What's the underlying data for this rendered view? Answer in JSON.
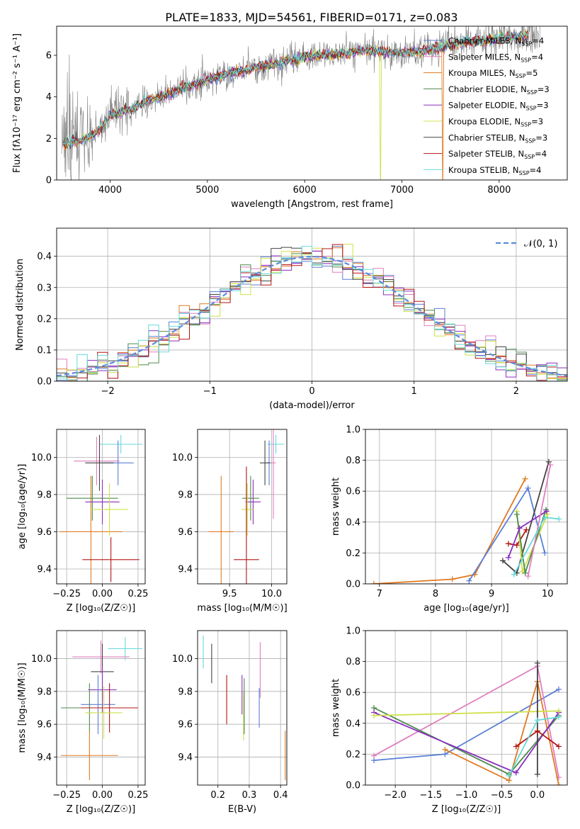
{
  "figure": {
    "title": "PLATE=1833, MJD=54561, FIBERID=0171, z=0.083"
  },
  "colors": {
    "Chabrier MILES": "#5b7fd6",
    "Salpeter MILES": "#e07fbf",
    "Kroupa MILES": "#e07a22",
    "Chabrier ELODIE": "#4f8a4f",
    "Salpeter ELODIE": "#8a2fbf",
    "Kroupa ELODIE": "#cfe04a",
    "Chabrier STELIB": "#444444",
    "Salpeter STELIB": "#b31515",
    "Kroupa STELIB": "#66d9d9",
    "data": "#808080",
    "normal": "#5b8cdb",
    "grid": "#b0b0b0"
  },
  "chart_data": [
    {
      "id": "spectrum",
      "type": "line",
      "xlabel": "wavelength [Angstrom, rest frame]",
      "ylabel": "Flux [fλ10⁻¹⁷ erg cm⁻² s⁻¹ A⁻¹]",
      "xlim": [
        3450,
        8700
      ],
      "ylim": [
        0,
        7.4
      ],
      "xticks": [
        4000,
        5000,
        6000,
        7000,
        8000
      ],
      "yticks": [
        0,
        2,
        4,
        6
      ],
      "grid": false,
      "legend_position": "right",
      "series": [
        {
          "name": "Chabrier MILES, N",
          "sub": "SSP",
          "suffix": "=4"
        },
        {
          "name": "Salpeter MILES, N",
          "sub": "SSP",
          "suffix": "=4"
        },
        {
          "name": "Kroupa MILES, N",
          "sub": "SSP",
          "suffix": "=5"
        },
        {
          "name": "Chabrier ELODIE, N",
          "sub": "SSP",
          "suffix": "=3"
        },
        {
          "name": "Salpeter ELODIE, N",
          "sub": "SSP",
          "suffix": "=3"
        },
        {
          "name": "Kroupa ELODIE, N",
          "sub": "SSP",
          "suffix": "=3"
        },
        {
          "name": "Chabrier STELIB, N",
          "sub": "SSP",
          "suffix": "=3"
        },
        {
          "name": "Salpeter STELIB, N",
          "sub": "SSP",
          "suffix": "=4"
        },
        {
          "name": "Kroupa STELIB, N",
          "sub": "SSP",
          "suffix": "=4"
        }
      ],
      "continuum": {
        "x": [
          3500,
          3600,
          3700,
          3800,
          3900,
          4000,
          4200,
          4400,
          4600,
          4800,
          5000,
          5200,
          5400,
          5600,
          5800,
          6000,
          6200,
          6400,
          6600,
          6800,
          7000,
          7200,
          7400,
          7600,
          7800,
          8000,
          8200,
          8400
        ],
        "y": [
          1.6,
          1.8,
          1.9,
          2.1,
          2.5,
          3.1,
          3.4,
          3.8,
          4.1,
          4.5,
          4.8,
          5.1,
          5.3,
          5.5,
          5.7,
          5.9,
          6.0,
          6.1,
          6.2,
          6.2,
          6.1,
          6.2,
          6.4,
          6.6,
          6.7,
          6.8,
          6.9,
          6.9
        ]
      }
    },
    {
      "id": "residuals",
      "type": "line",
      "xlabel": "(data-model)/error",
      "ylabel": "Normed distribution",
      "xlim": [
        -2.5,
        2.5
      ],
      "ylim": [
        0,
        0.49
      ],
      "xticks": [
        -2,
        -1,
        0,
        1,
        2
      ],
      "yticks": [
        0.0,
        0.1,
        0.2,
        0.3,
        0.4
      ],
      "grid": true,
      "legend_position": "top-right",
      "legend": "𝒩(0, 1)",
      "bins": 50
    },
    {
      "id": "age_vs_Z",
      "type": "scatter",
      "xlabel": "Z [log₁₀(Z/Z☉)]",
      "ylabel": "age  [log₁₀(age/yr)]",
      "xlim": [
        -0.32,
        0.3
      ],
      "ylim": [
        9.32,
        10.15
      ],
      "xticks": [
        -0.25,
        0.0,
        0.25
      ],
      "yticks": [
        9.4,
        9.6,
        9.8,
        10.0
      ],
      "grid": true,
      "points": [
        {
          "model": "Salpeter MILES",
          "x": -0.04,
          "y": 9.98,
          "xerr": 0.16,
          "yerr": 0.13
        },
        {
          "model": "Kroupa STELIB",
          "x": 0.13,
          "y": 10.07,
          "xerr": 0.15,
          "yerr": 0.05
        },
        {
          "model": "Chabrier MILES",
          "x": 0.11,
          "y": 9.97,
          "xerr": 0.11,
          "yerr": 0.12
        },
        {
          "model": "Chabrier STELIB",
          "x": -0.02,
          "y": 9.97,
          "xerr": 0.1,
          "yerr": 0.15
        },
        {
          "model": "Kroupa MILES",
          "x": -0.08,
          "y": 9.6,
          "xerr": 0.22,
          "yerr": 0.3
        },
        {
          "model": "Chabrier ELODIE",
          "x": -0.07,
          "y": 9.78,
          "xerr": 0.18,
          "yerr": 0.12
        },
        {
          "model": "Salpeter ELODIE",
          "x": 0.0,
          "y": 9.76,
          "xerr": 0.12,
          "yerr": 0.12
        },
        {
          "model": "Kroupa ELODIE",
          "x": 0.05,
          "y": 9.72,
          "xerr": 0.13,
          "yerr": 0.14
        },
        {
          "model": "Salpeter STELIB",
          "x": 0.06,
          "y": 9.45,
          "xerr": 0.2,
          "yerr": 0.12
        }
      ]
    },
    {
      "id": "age_vs_mass",
      "type": "scatter",
      "xlabel": "mass [log₁₀(M/M☉)]",
      "ylabel": "",
      "xlim": [
        9.12,
        10.18
      ],
      "ylim": [
        9.32,
        10.15
      ],
      "xticks": [
        9.5,
        10.0
      ],
      "yticks": [
        9.4,
        9.6,
        9.8,
        10.0
      ],
      "grid": true,
      "points": [
        {
          "model": "Kroupa STELIB",
          "x": 10.05,
          "y": 10.07,
          "xerr": 0.1,
          "yerr": 0.05
        },
        {
          "model": "Chabrier MILES",
          "x": 9.97,
          "y": 9.97,
          "xerr": 0.03,
          "yerr": 0.12
        },
        {
          "model": "Chabrier STELIB",
          "x": 9.92,
          "y": 9.97,
          "xerr": 0.06,
          "yerr": 0.12
        },
        {
          "model": "Salpeter MILES",
          "x": 10.02,
          "y": 9.97,
          "xerr": 0.03,
          "yerr": 0.3
        },
        {
          "model": "Kroupa MILES",
          "x": 9.4,
          "y": 9.6,
          "xerr": 0.15,
          "yerr": 0.3
        },
        {
          "model": "Chabrier ELODIE",
          "x": 9.75,
          "y": 9.78,
          "xerr": 0.1,
          "yerr": 0.12
        },
        {
          "model": "Salpeter ELODIE",
          "x": 9.78,
          "y": 9.76,
          "xerr": 0.09,
          "yerr": 0.12
        },
        {
          "model": "Kroupa ELODIE",
          "x": 9.71,
          "y": 9.72,
          "xerr": 0.07,
          "yerr": 0.14
        },
        {
          "model": "Salpeter STELIB",
          "x": 9.7,
          "y": 9.45,
          "xerr": 0.15,
          "yerr": 0.5
        }
      ]
    },
    {
      "id": "mass_weight_vs_age",
      "type": "line",
      "xlabel": "age  [log₁₀(age/yr)]",
      "ylabel": "mass weight",
      "xlim": [
        6.75,
        10.35
      ],
      "ylim": [
        0,
        1.0
      ],
      "xticks": [
        7,
        8,
        9,
        10
      ],
      "yticks": [
        0.0,
        0.2,
        0.4,
        0.6,
        0.8,
        1.0
      ],
      "grid": true,
      "series": [
        {
          "model": "Kroupa MILES",
          "x": [
            6.9,
            8.3,
            8.7,
            9.6
          ],
          "y": [
            0.0,
            0.03,
            0.06,
            0.68
          ]
        },
        {
          "model": "Chabrier MILES",
          "x": [
            8.6,
            9.65,
            9.95
          ],
          "y": [
            0.02,
            0.62,
            0.2
          ]
        },
        {
          "model": "Salpeter STELIB",
          "x": [
            9.3,
            9.45,
            9.62
          ],
          "y": [
            0.26,
            0.25,
            0.35
          ]
        },
        {
          "model": "Chabrier STELIB",
          "x": [
            9.2,
            9.45,
            10.02
          ],
          "y": [
            0.15,
            0.07,
            0.79
          ]
        },
        {
          "model": "Kroupa ELODIE",
          "x": [
            9.45,
            9.55,
            10.0
          ],
          "y": [
            0.47,
            0.08,
            0.45
          ]
        },
        {
          "model": "Chabrier ELODIE",
          "x": [
            9.45,
            9.6,
            9.97
          ],
          "y": [
            0.45,
            0.07,
            0.48
          ]
        },
        {
          "model": "Salpeter ELODIE",
          "x": [
            9.3,
            9.5,
            9.98
          ],
          "y": [
            0.17,
            0.36,
            0.47
          ]
        },
        {
          "model": "Salpeter MILES",
          "x": [
            9.65,
            10.05
          ],
          "y": [
            0.05,
            0.77
          ]
        },
        {
          "model": "Kroupa STELIB",
          "x": [
            9.4,
            9.95,
            10.2
          ],
          "y": [
            0.06,
            0.43,
            0.42
          ]
        }
      ]
    },
    {
      "id": "mass_vs_Z",
      "type": "scatter",
      "xlabel": "Z [log₁₀(Z/Z☉)]",
      "ylabel": "mass [log₁₀(M/M☉)]",
      "xlim": [
        -0.32,
        0.3
      ],
      "ylim": [
        9.23,
        10.17
      ],
      "xticks": [
        -0.25,
        0.0,
        0.25
      ],
      "yticks": [
        9.4,
        9.6,
        9.8,
        10.0
      ],
      "grid": true,
      "points": [
        {
          "model": "Kroupa STELIB",
          "x": 0.16,
          "y": 10.06,
          "xerr": 0.12,
          "yerr": 0.07
        },
        {
          "model": "Salpeter MILES",
          "x": -0.01,
          "y": 10.01,
          "xerr": 0.2,
          "yerr": 0.1
        },
        {
          "model": "Chabrier STELIB",
          "x": 0.0,
          "y": 9.92,
          "xerr": 0.08,
          "yerr": 0.17
        },
        {
          "model": "Salpeter ELODIE",
          "x": 0.0,
          "y": 9.81,
          "xerr": 0.1,
          "yerr": 0.14
        },
        {
          "model": "Chabrier MILES",
          "x": -0.03,
          "y": 9.72,
          "xerr": 0.12,
          "yerr": 0.18
        },
        {
          "model": "Chabrier ELODIE",
          "x": -0.09,
          "y": 9.7,
          "xerr": 0.2,
          "yerr": 0.15
        },
        {
          "model": "Salpeter STELIB",
          "x": 0.05,
          "y": 9.7,
          "xerr": 0.2,
          "yerr": 0.15
        },
        {
          "model": "Kroupa ELODIE",
          "x": 0.01,
          "y": 9.67,
          "xerr": 0.13,
          "yerr": 0.16
        },
        {
          "model": "Kroupa MILES",
          "x": -0.09,
          "y": 9.41,
          "xerr": 0.2,
          "yerr": 0.15
        }
      ]
    },
    {
      "id": "mass_vs_ebv",
      "type": "scatter",
      "xlabel": "E(B-V)",
      "ylabel": "",
      "xlim": [
        0.135,
        0.42
      ],
      "ylim": [
        9.23,
        10.17
      ],
      "xticks": [
        0.2,
        0.3,
        0.4
      ],
      "yticks": [
        9.4,
        9.6,
        9.8,
        10.0
      ],
      "grid": true,
      "points": [
        {
          "model": "Kroupa STELIB",
          "x": 0.153,
          "y": 10.04,
          "yerr": 0.1
        },
        {
          "model": "Chabrier STELIB",
          "x": 0.18,
          "y": 9.97,
          "yerr": 0.12
        },
        {
          "model": "Salpeter STELIB",
          "x": 0.228,
          "y": 9.75,
          "yerr": 0.15
        },
        {
          "model": "Salpeter ELODIE",
          "x": 0.277,
          "y": 9.78,
          "yerr": 0.12
        },
        {
          "model": "Kroupa ELODIE",
          "x": 0.282,
          "y": 9.65,
          "yerr": 0.15
        },
        {
          "model": "Chabrier ELODIE",
          "x": 0.284,
          "y": 9.71,
          "yerr": 0.17
        },
        {
          "model": "Salpeter MILES",
          "x": 0.335,
          "y": 9.93,
          "yerr": 0.17
        },
        {
          "model": "Chabrier MILES",
          "x": 0.332,
          "y": 9.7,
          "yerr": 0.12
        },
        {
          "model": "Kroupa MILES",
          "x": 0.415,
          "y": 9.41,
          "yerr": 0.15
        }
      ]
    },
    {
      "id": "mass_weight_vs_Z",
      "type": "line",
      "xlabel": "Z [log₁₀(Z/Z☉)]",
      "ylabel": "mass weight",
      "xlim": [
        -2.42,
        0.42
      ],
      "ylim": [
        0,
        1.0
      ],
      "xticks": [
        -2.0,
        -1.5,
        -1.0,
        -0.5,
        0.0
      ],
      "yticks": [
        0.0,
        0.2,
        0.4,
        0.6,
        0.8,
        1.0
      ],
      "grid": true,
      "series": [
        {
          "model": "Chabrier MILES",
          "x": [
            -2.3,
            -1.3,
            0.3
          ],
          "y": [
            0.16,
            0.2,
            0.62
          ]
        },
        {
          "model": "Salpeter MILES",
          "x": [
            -2.3,
            0.0,
            0.3
          ],
          "y": [
            0.19,
            0.77,
            0.05
          ]
        },
        {
          "model": "Kroupa MILES",
          "x": [
            -1.3,
            -0.4,
            0.0,
            0.3
          ],
          "y": [
            0.23,
            0.03,
            0.67,
            0.0
          ]
        },
        {
          "model": "Chabrier ELODIE",
          "x": [
            -2.3,
            -0.4,
            0.3
          ],
          "y": [
            0.5,
            0.07,
            0.45
          ]
        },
        {
          "model": "Salpeter ELODIE",
          "x": [
            -2.3,
            -0.3,
            0.3
          ],
          "y": [
            0.47,
            0.08,
            0.47
          ]
        },
        {
          "model": "Kroupa ELODIE",
          "x": [
            -2.3,
            0.3
          ],
          "y": [
            0.45,
            0.48
          ]
        },
        {
          "model": "Chabrier STELIB",
          "x": [
            0.0,
            0.0
          ],
          "y": [
            0.79,
            0.07
          ]
        },
        {
          "model": "Salpeter STELIB",
          "x": [
            -0.3,
            0.0,
            0.3
          ],
          "y": [
            0.25,
            0.35,
            0.25
          ]
        },
        {
          "model": "Kroupa STELIB",
          "x": [
            -0.4,
            0.0,
            0.3
          ],
          "y": [
            0.06,
            0.42,
            0.44
          ]
        }
      ]
    }
  ]
}
